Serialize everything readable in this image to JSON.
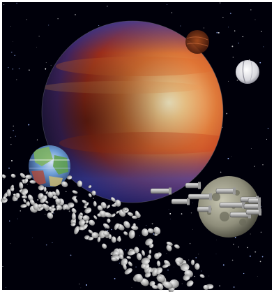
{
  "scene": {
    "description_visible_text": "",
    "colors": {
      "frame": "#ffffff",
      "space": "#000008",
      "gas_giant_core": "#f4e0b0",
      "gas_giant_mid": "#d2541e",
      "gas_giant_edge": "#2a2f8a",
      "moon_grey": "#9a9a86",
      "small_planet_blue": "#3c7bd0",
      "small_planet_green": "#7fb45a",
      "white_moon": "#e8e8ec",
      "brown_planet": "#7a2d12",
      "ship_hull": "#c8c8c8",
      "asteroid": "#bdbdbd"
    },
    "objects": {
      "gas_giant": "gas-giant",
      "cratered_moon": "cratered-moon",
      "earthlike_planet": "earthlike-planet",
      "white_moon": "white-moon",
      "brown_planet": "brown-planet",
      "fleet": "starship-fleet",
      "asteroid_belt": "asteroid-belt",
      "starfield": "starfield"
    }
  }
}
